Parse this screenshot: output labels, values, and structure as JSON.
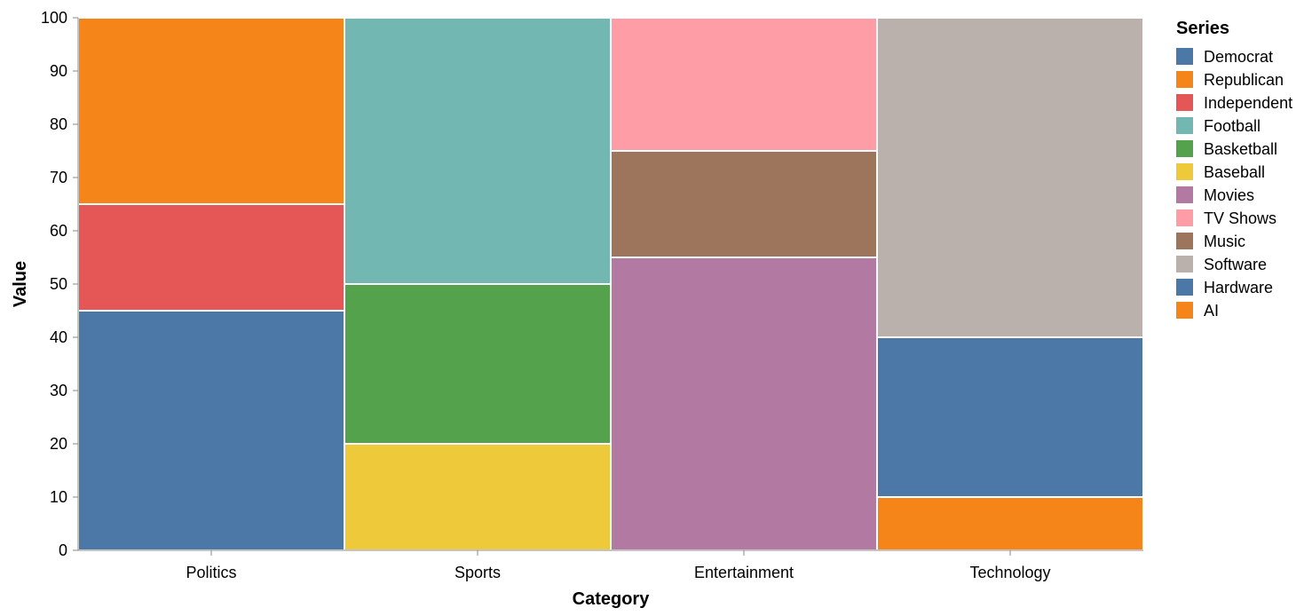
{
  "chart_data": {
    "type": "bar",
    "stacked": true,
    "categories": [
      "Politics",
      "Sports",
      "Entertainment",
      "Technology"
    ],
    "xlabel": "Category",
    "ylabel": "Value",
    "ylim": [
      0,
      100
    ],
    "yticks": [
      0,
      10,
      20,
      30,
      40,
      50,
      60,
      70,
      80,
      90,
      100
    ],
    "grid": false,
    "legend_title": "Series",
    "legend_position": "right",
    "series": [
      {
        "name": "Democrat",
        "color": "#4c78a8",
        "category": "Politics",
        "value": 45
      },
      {
        "name": "Republican",
        "color": "#f58518",
        "category": "Politics",
        "value": 35
      },
      {
        "name": "Independent",
        "color": "#e45756",
        "category": "Politics",
        "value": 20
      },
      {
        "name": "Football",
        "color": "#72b7b2",
        "category": "Sports",
        "value": 50
      },
      {
        "name": "Basketball",
        "color": "#54a24b",
        "category": "Sports",
        "value": 30
      },
      {
        "name": "Baseball",
        "color": "#eeca3b",
        "category": "Sports",
        "value": 20
      },
      {
        "name": "Movies",
        "color": "#b279a2",
        "category": "Entertainment",
        "value": 55
      },
      {
        "name": "TV Shows",
        "color": "#ff9da6",
        "category": "Entertainment",
        "value": 25
      },
      {
        "name": "Music",
        "color": "#9d755d",
        "category": "Entertainment",
        "value": 20
      },
      {
        "name": "Software",
        "color": "#bab0ac",
        "category": "Technology",
        "value": 60
      },
      {
        "name": "Hardware",
        "color": "#4c78a8",
        "category": "Technology",
        "value": 30
      },
      {
        "name": "AI",
        "color": "#f58518",
        "category": "Technology",
        "value": 10
      }
    ],
    "stack_order_bottom_to_top": {
      "Politics": [
        "Democrat",
        "Independent",
        "Republican"
      ],
      "Sports": [
        "Baseball",
        "Basketball",
        "Football"
      ],
      "Entertainment": [
        "Movies",
        "Music",
        "TV Shows"
      ],
      "Technology": [
        "AI",
        "Hardware",
        "Software"
      ]
    }
  }
}
